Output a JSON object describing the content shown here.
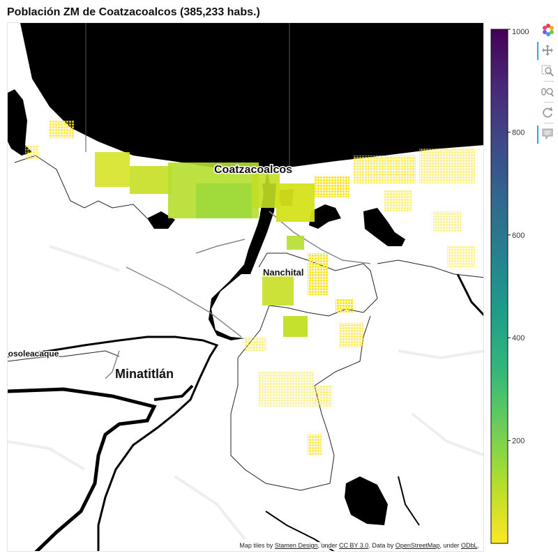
{
  "title": "Población ZM de Coatzacoalcos (385,233 habs.)",
  "map": {
    "place_labels": [
      {
        "id": "coatzacoalcos",
        "text": "Coatzacoalcos"
      },
      {
        "id": "nanchital",
        "text": "Nanchital"
      },
      {
        "id": "cosoleacaque",
        "text": "Cosoleacaque"
      },
      {
        "id": "minatitlan",
        "text": "Minatitlán"
      }
    ],
    "attribution": {
      "prefix": "Map tiles by ",
      "stamen": "Stamen Design",
      "mid1": ", under ",
      "ccby": "CC BY 3.0",
      "mid2": ". Data by ",
      "osm": "OpenStreetMap",
      "mid3": ", under ",
      "odbl": "ODbL",
      "suffix": "."
    }
  },
  "colorbar": {
    "palette": "Viridis (reversed)",
    "colors": [
      "#440154",
      "#482878",
      "#3e4989",
      "#31688e",
      "#26828e",
      "#1f9e89",
      "#35b779",
      "#6ece58",
      "#b5de2b",
      "#fde725"
    ],
    "min": 0,
    "max": 1000,
    "ticks": [
      "200",
      "400",
      "600",
      "800",
      "1000"
    ]
  },
  "toolbar": {
    "tools": [
      "bokeh-logo-icon",
      "pan-icon",
      "box-zoom-icon",
      "wheel-zoom-icon",
      "reset-icon",
      "hover-icon"
    ],
    "accent": "#26aae1"
  },
  "data_colors": {
    "yellow": "#fde725",
    "lime": "#d5e21a",
    "green": "#b5de2b"
  }
}
